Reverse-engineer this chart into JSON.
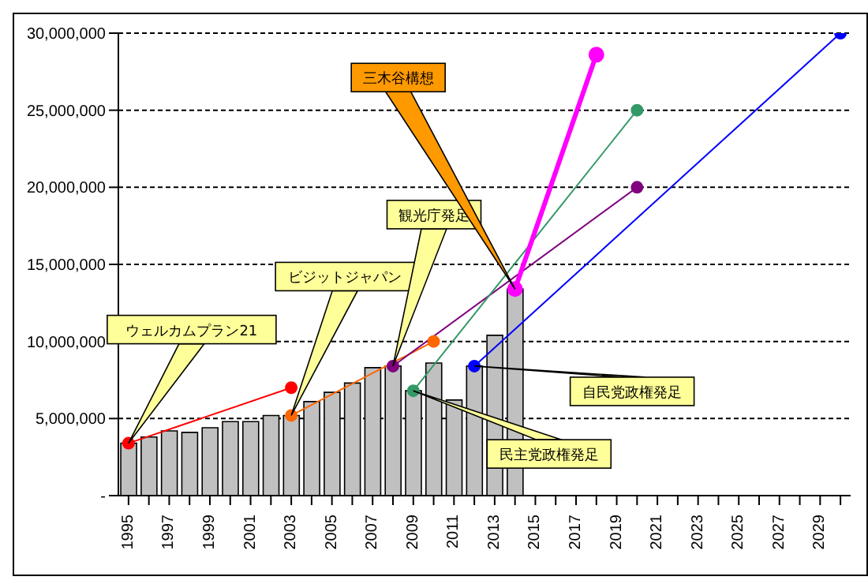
{
  "chart_data": {
    "type": "bar",
    "categories": [
      "1995",
      null,
      "1997",
      null,
      "1999",
      null,
      "2001",
      null,
      "2003",
      null,
      "2005",
      null,
      "2007",
      null,
      "2009",
      null,
      "2011",
      null,
      "2013",
      null,
      "2015",
      null,
      "2017",
      null,
      "2019",
      null,
      "2021",
      null,
      "2023",
      null,
      "2025",
      null,
      "2027",
      null,
      "2029",
      null
    ],
    "series": [
      {
        "color": "#c0c0c0",
        "values": [
          3400000,
          3800000,
          4200000,
          4100000,
          4400000,
          4800000,
          4800000,
          5200000,
          5200000,
          6100000,
          6700000,
          7300000,
          8300000,
          8400000,
          6800000,
          8600000,
          6200000,
          8400000,
          10400000,
          13400000,
          null,
          null,
          null,
          null,
          null,
          null,
          null,
          null,
          null,
          null,
          null,
          null,
          null,
          null,
          null,
          null
        ]
      },
      {
        "type": "line",
        "color": "#ff0000",
        "values": [
          3400000,
          null,
          null,
          null,
          null,
          null,
          null,
          null,
          7000000,
          null,
          null,
          null,
          null,
          null,
          null,
          null,
          null,
          null,
          null,
          null,
          null,
          null,
          null,
          null,
          null,
          null,
          null,
          null,
          null,
          null,
          null,
          null,
          null,
          null,
          null,
          null
        ]
      },
      {
        "type": "line",
        "color": "#ff6600",
        "values": [
          null,
          null,
          null,
          null,
          null,
          null,
          null,
          null,
          5200000,
          null,
          null,
          null,
          null,
          null,
          null,
          10000000,
          null,
          null,
          null,
          null,
          null,
          null,
          null,
          null,
          null,
          null,
          null,
          null,
          null,
          null,
          null,
          null,
          null,
          null,
          null,
          null
        ]
      },
      {
        "type": "line",
        "color": "#800080",
        "values": [
          null,
          null,
          null,
          null,
          null,
          null,
          null,
          null,
          null,
          null,
          null,
          null,
          null,
          8400000,
          null,
          null,
          null,
          null,
          null,
          null,
          null,
          null,
          null,
          null,
          null,
          20000000,
          null,
          null,
          null,
          null,
          null,
          null,
          null,
          null,
          null,
          null
        ]
      },
      {
        "type": "line",
        "color": "#339966",
        "values": [
          null,
          null,
          null,
          null,
          null,
          null,
          null,
          null,
          null,
          null,
          null,
          null,
          null,
          null,
          6800000,
          null,
          null,
          null,
          null,
          null,
          null,
          null,
          null,
          null,
          null,
          25000000,
          null,
          null,
          null,
          null,
          null,
          null,
          null,
          null,
          null,
          null
        ]
      },
      {
        "type": "line",
        "color": "#0000ff",
        "values": [
          null,
          null,
          null,
          null,
          null,
          null,
          null,
          null,
          null,
          null,
          null,
          null,
          null,
          null,
          null,
          null,
          null,
          8400000,
          null,
          null,
          null,
          null,
          null,
          null,
          null,
          null,
          null,
          null,
          null,
          null,
          null,
          null,
          null,
          null,
          null,
          30000000
        ]
      },
      {
        "type": "line",
        "color": "#ff00ff",
        "values": [
          null,
          null,
          null,
          null,
          null,
          null,
          null,
          null,
          null,
          null,
          null,
          null,
          null,
          null,
          null,
          null,
          null,
          null,
          null,
          13400000,
          null,
          null,
          null,
          28600000,
          null,
          null,
          null,
          null,
          null,
          null,
          null,
          null,
          null,
          null,
          null,
          null
        ]
      }
    ],
    "ylim": [
      0,
      30000000
    ],
    "yticks": [
      {
        "value": 0,
        "label": "-"
      },
      {
        "value": 5000000,
        "label": "5,000,000"
      },
      {
        "value": 10000000,
        "label": "10,000,000"
      },
      {
        "value": 15000000,
        "label": "15,000,000"
      },
      {
        "value": 20000000,
        "label": "20,000,000"
      },
      {
        "value": 25000000,
        "label": "25,000,000"
      },
      {
        "value": 30000000,
        "label": "30,000,000"
      }
    ],
    "grid": "y",
    "legend": false,
    "marker": "circle",
    "annotations": [
      "ウェルカムプラン21",
      "ビジットジャパン",
      "観光庁発足",
      "民主党政権発足",
      "自民党政権発足",
      "三木谷構想"
    ]
  }
}
